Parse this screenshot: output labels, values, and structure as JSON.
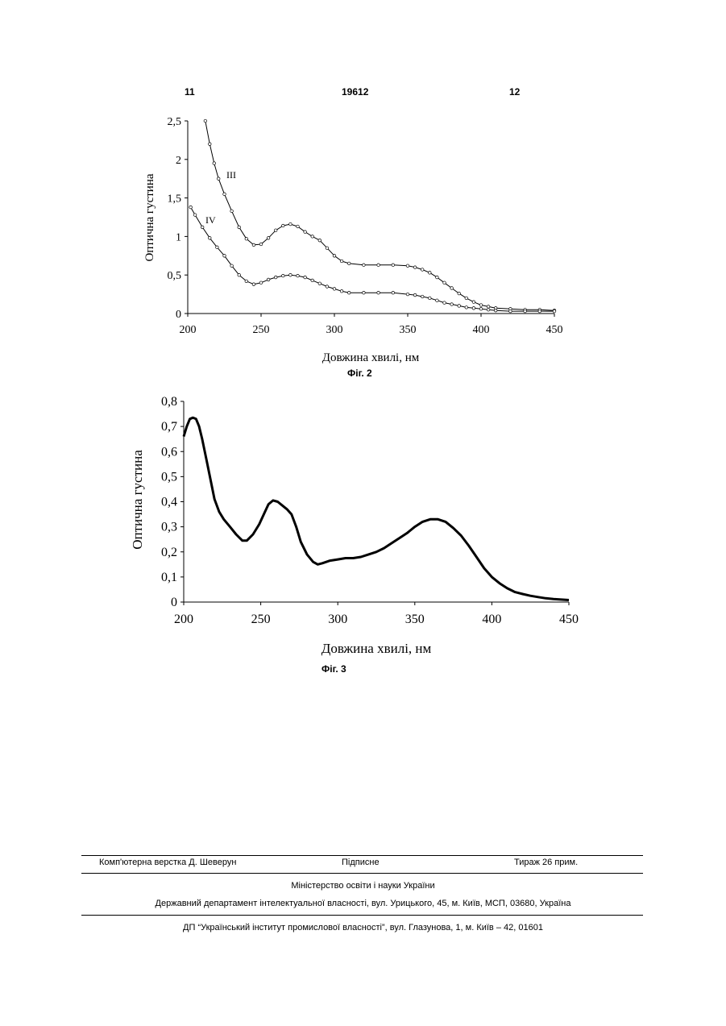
{
  "header": {
    "left_page": "11",
    "patent_number": "19612",
    "right_page": "12"
  },
  "chart_data": [
    {
      "type": "line",
      "caption": "Фіг. 2",
      "title": "",
      "xlabel": "Довжина хвилі, нм",
      "ylabel": "Оптична густина",
      "xlim": [
        200,
        450
      ],
      "ylim": [
        0,
        2.5
      ],
      "xticks": [
        "200",
        "250",
        "300",
        "350",
        "400",
        "450"
      ],
      "yticks": [
        "0",
        "0,5",
        "1",
        "1,5",
        "2",
        "2,5"
      ],
      "grid": false,
      "markers": true,
      "series": [
        {
          "name": "III",
          "x": [
            212,
            215,
            218,
            221,
            225,
            230,
            235,
            240,
            245,
            250,
            255,
            260,
            265,
            270,
            275,
            280,
            285,
            290,
            295,
            300,
            305,
            310,
            320,
            330,
            340,
            350,
            355,
            360,
            365,
            370,
            375,
            380,
            385,
            390,
            395,
            400,
            405,
            410,
            420,
            430,
            440,
            450
          ],
          "y": [
            2.5,
            2.2,
            1.95,
            1.75,
            1.55,
            1.33,
            1.12,
            0.97,
            0.89,
            0.9,
            0.98,
            1.08,
            1.14,
            1.16,
            1.13,
            1.06,
            1.0,
            0.95,
            0.85,
            0.75,
            0.68,
            0.65,
            0.63,
            0.63,
            0.63,
            0.62,
            0.6,
            0.57,
            0.53,
            0.47,
            0.4,
            0.33,
            0.26,
            0.2,
            0.15,
            0.11,
            0.09,
            0.07,
            0.06,
            0.05,
            0.05,
            0.04
          ]
        },
        {
          "name": "IV",
          "x": [
            202,
            205,
            210,
            215,
            220,
            225,
            230,
            235,
            240,
            245,
            250,
            255,
            260,
            265,
            270,
            275,
            280,
            285,
            290,
            295,
            300,
            305,
            310,
            320,
            330,
            340,
            350,
            355,
            360,
            365,
            370,
            375,
            380,
            385,
            390,
            395,
            400,
            405,
            410,
            420,
            430,
            440,
            450
          ],
          "y": [
            1.38,
            1.28,
            1.12,
            0.98,
            0.86,
            0.75,
            0.62,
            0.5,
            0.42,
            0.38,
            0.4,
            0.44,
            0.47,
            0.49,
            0.5,
            0.49,
            0.47,
            0.43,
            0.39,
            0.35,
            0.32,
            0.29,
            0.27,
            0.27,
            0.27,
            0.27,
            0.25,
            0.24,
            0.22,
            0.2,
            0.17,
            0.14,
            0.12,
            0.1,
            0.08,
            0.07,
            0.06,
            0.05,
            0.04,
            0.03,
            0.03,
            0.03,
            0.03
          ]
        }
      ]
    },
    {
      "type": "line",
      "caption": "Фіг. 3",
      "title": "",
      "xlabel": "Довжина хвилі, нм",
      "ylabel": "Оптична густина",
      "xlim": [
        200,
        450
      ],
      "ylim": [
        0,
        0.8
      ],
      "xticks": [
        "200",
        "250",
        "300",
        "350",
        "400",
        "450"
      ],
      "yticks": [
        "0",
        "0,1",
        "0,2",
        "0,3",
        "0,4",
        "0,5",
        "0,6",
        "0,7",
        "0,8"
      ],
      "grid": false,
      "markers": false,
      "series": [
        {
          "x": [
            200,
            202,
            204,
            206,
            208,
            210,
            212,
            215,
            218,
            220,
            223,
            226,
            230,
            234,
            238,
            241,
            245,
            249,
            252,
            255,
            258,
            261,
            264,
            267,
            270,
            273,
            276,
            280,
            284,
            287,
            290,
            295,
            300,
            305,
            310,
            315,
            320,
            325,
            330,
            335,
            340,
            345,
            350,
            355,
            360,
            365,
            370,
            375,
            380,
            385,
            390,
            395,
            400,
            405,
            410,
            415,
            420,
            425,
            430,
            435,
            440,
            445,
            450
          ],
          "y": [
            0.66,
            0.7,
            0.73,
            0.735,
            0.73,
            0.7,
            0.65,
            0.56,
            0.47,
            0.41,
            0.36,
            0.33,
            0.3,
            0.27,
            0.245,
            0.245,
            0.27,
            0.31,
            0.35,
            0.39,
            0.405,
            0.4,
            0.385,
            0.37,
            0.35,
            0.3,
            0.24,
            0.19,
            0.16,
            0.15,
            0.155,
            0.165,
            0.17,
            0.175,
            0.175,
            0.18,
            0.19,
            0.2,
            0.215,
            0.235,
            0.255,
            0.275,
            0.3,
            0.32,
            0.33,
            0.33,
            0.32,
            0.295,
            0.265,
            0.225,
            0.18,
            0.135,
            0.1,
            0.075,
            0.055,
            0.04,
            0.032,
            0.025,
            0.02,
            0.015,
            0.012,
            0.01,
            0.008
          ]
        }
      ]
    }
  ],
  "footer": {
    "typesetter": "Комп'ютерна верстка Д. Шеверун",
    "signed": "Підписне",
    "circulation": "Тираж 26 прим.",
    "ministry": "Міністерство освіти і науки України",
    "department": "Державний департамент інтелектуальної власності, вул. Урицького, 45, м. Київ, МСП, 03680, Україна",
    "institute": "ДП “Український інститут промислової власності”, вул. Глазунова, 1, м. Київ – 42, 01601"
  }
}
